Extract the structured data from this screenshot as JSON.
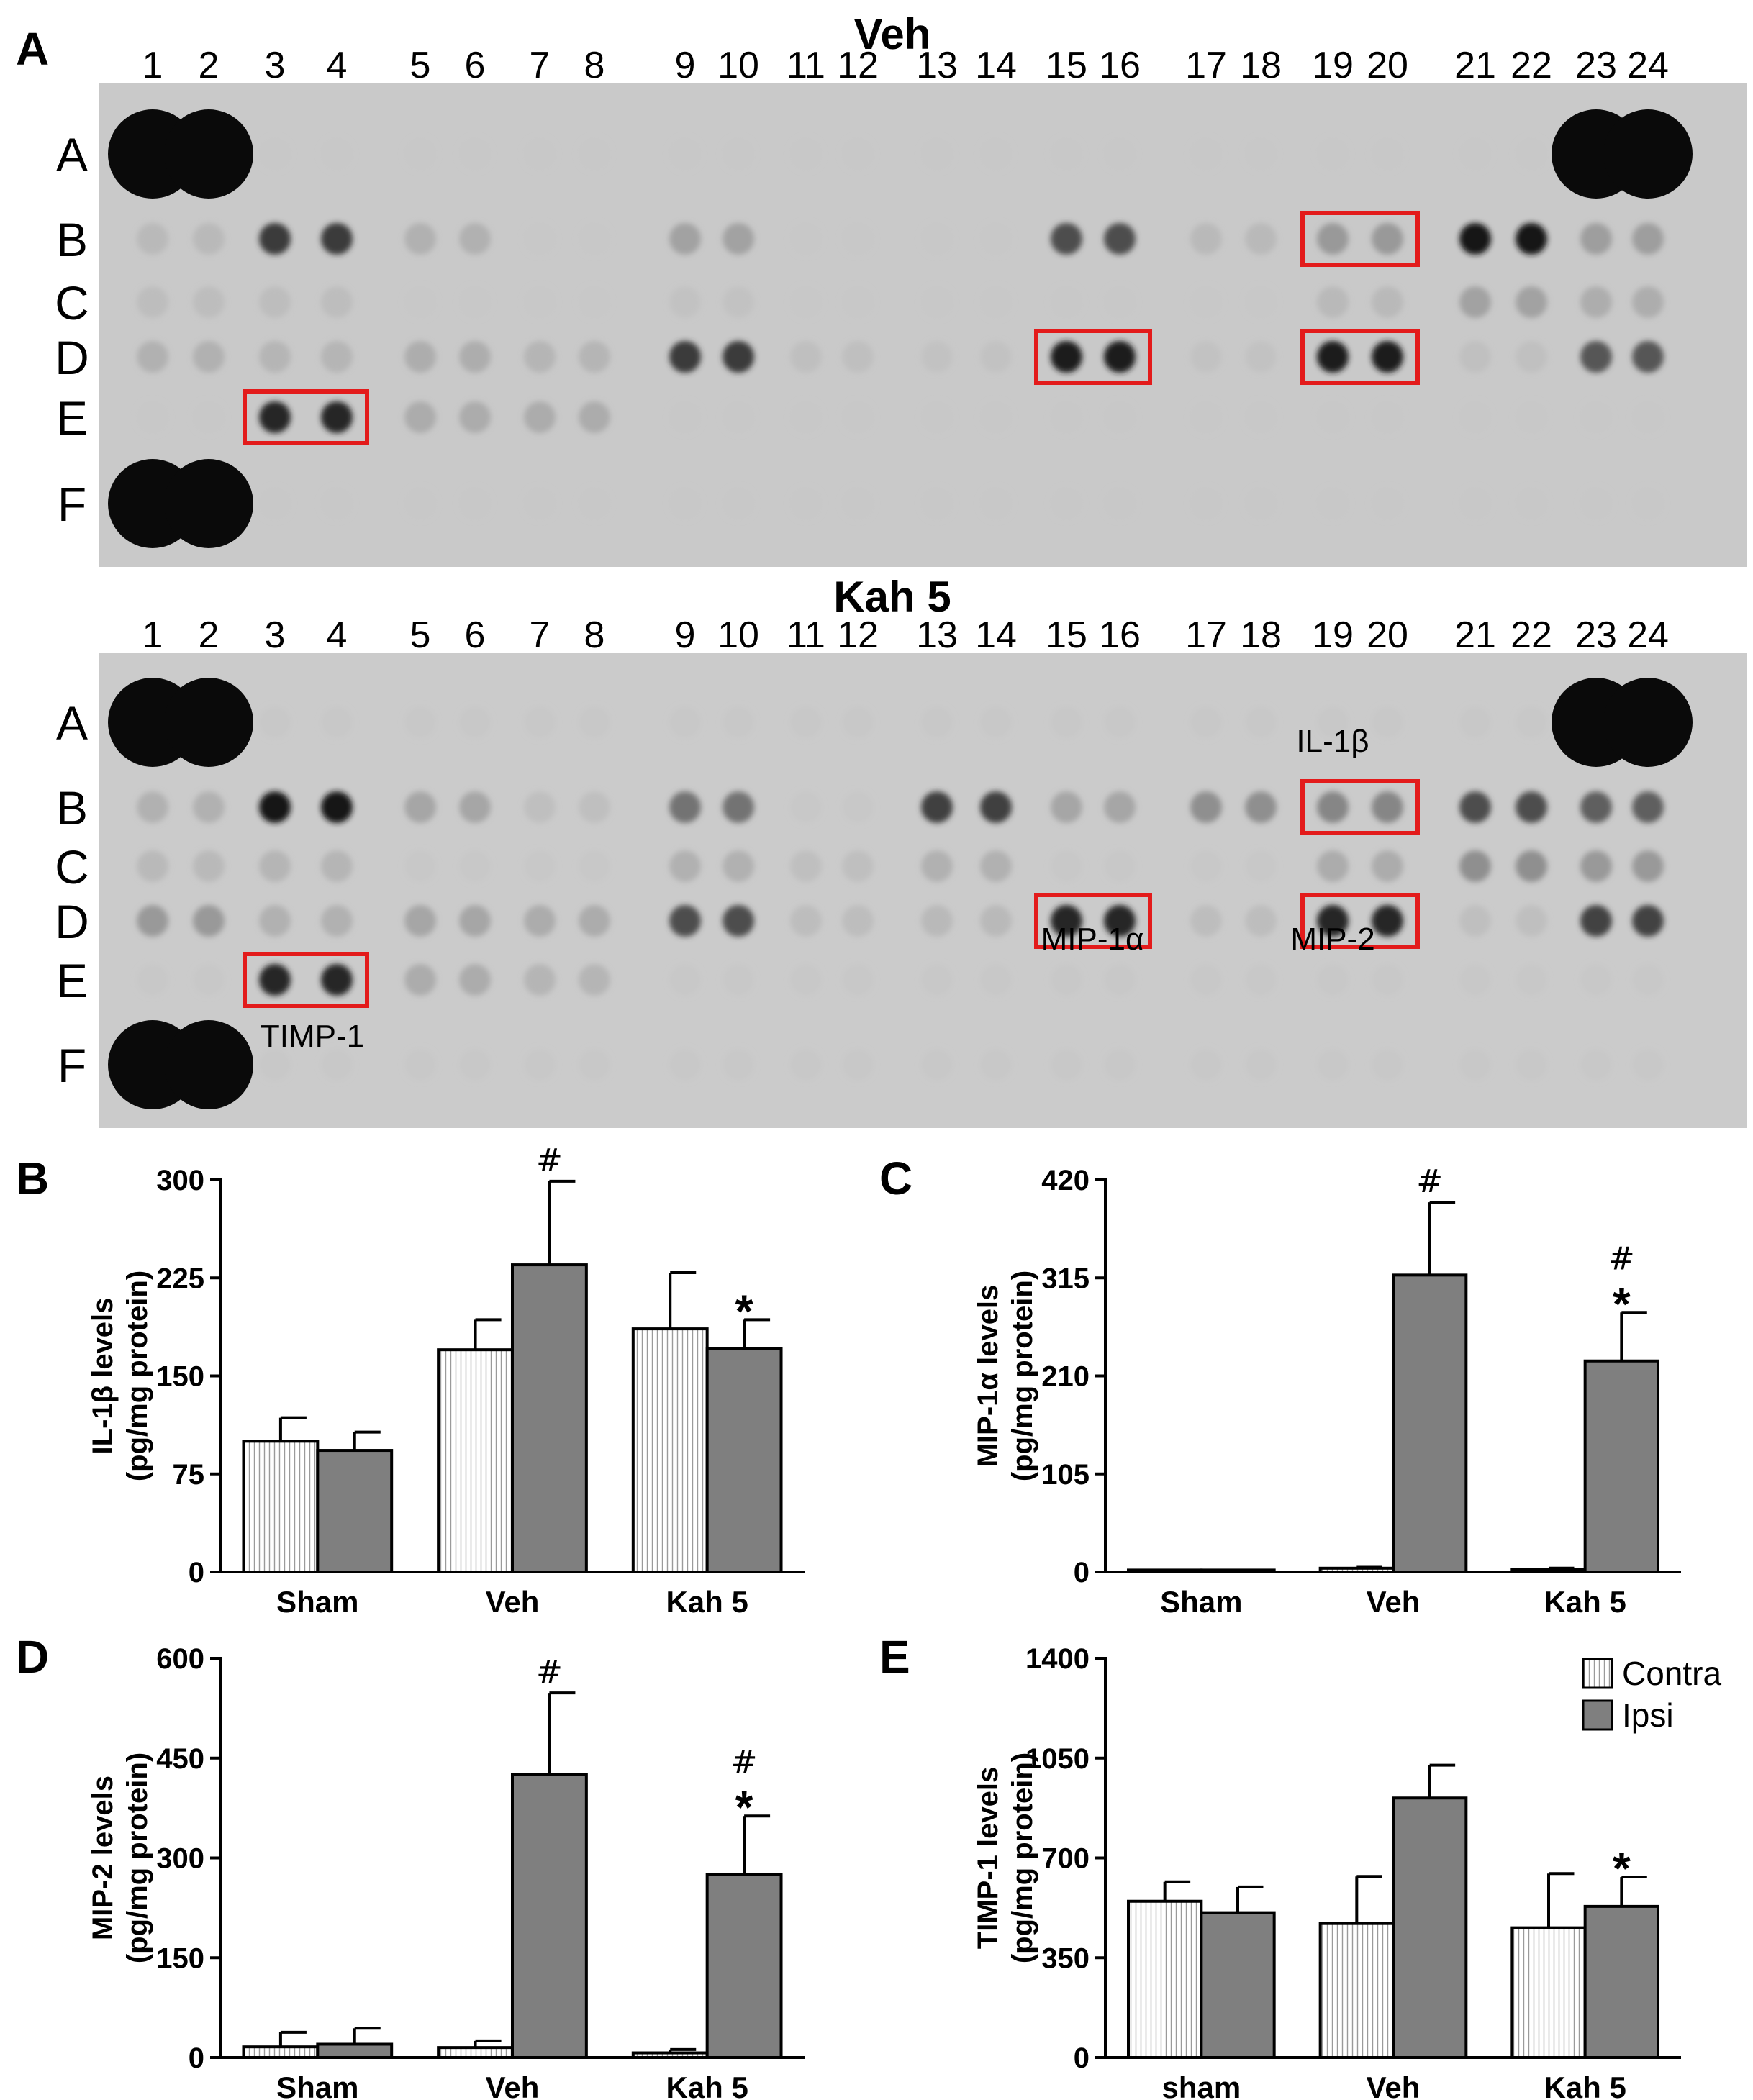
{
  "blot": {
    "panel_label": "A",
    "columns": [
      "1",
      "2",
      "3",
      "4",
      "5",
      "6",
      "7",
      "8",
      "9",
      "10",
      "11",
      "12",
      "13",
      "14",
      "15",
      "16",
      "17",
      "18",
      "19",
      "20",
      "21",
      "22",
      "23",
      "24"
    ],
    "rows": [
      "A",
      "B",
      "C",
      "D",
      "E",
      "F"
    ],
    "membranes": [
      {
        "title": "Veh"
      },
      {
        "title": "Kah 5"
      }
    ],
    "highlight_labels": {
      "il1b": "IL-1β",
      "mip1a": "MIP-1α",
      "mip2": "MIP-2",
      "timp1": "TIMP-1"
    }
  },
  "legend": {
    "contra": "Contra",
    "ipsi": "Ipsi"
  },
  "colors": {
    "ipsi_fill": "#7f7f7f",
    "contra_fill": "#ffffff",
    "highlight_box": "#e31b1b",
    "membrane": "#c8c8c8"
  },
  "chart_data": [
    {
      "panel": "B",
      "type": "bar",
      "ylabel": "IL-1β levels",
      "ylabel2": "(pg/mg protein)",
      "categories": [
        "Sham",
        "Veh",
        "Kah 5"
      ],
      "ylim": [
        0,
        300
      ],
      "yticks": [
        "0",
        "75",
        "150",
        "225",
        "300"
      ],
      "series": [
        {
          "name": "Contra",
          "values": [
            100,
            170,
            186
          ],
          "errors": [
            18,
            23,
            43
          ]
        },
        {
          "name": "Ipsi",
          "values": [
            93,
            235,
            171
          ],
          "errors": [
            14,
            64,
            22
          ]
        }
      ],
      "annotations": [
        {
          "category": 1,
          "series": 1,
          "marks": [
            "#"
          ]
        },
        {
          "category": 2,
          "series": 1,
          "marks": [
            "*"
          ]
        }
      ]
    },
    {
      "panel": "C",
      "type": "bar",
      "ylabel": "MIP-1α levels",
      "ylabel2": "(pg/mg protein)",
      "categories": [
        "Sham",
        "Veh",
        "Kah 5"
      ],
      "ylim": [
        0,
        420
      ],
      "yticks": [
        "0",
        "105",
        "210",
        "315",
        "420"
      ],
      "series": [
        {
          "name": "Contra",
          "values": [
            2,
            4,
            3
          ],
          "errors": [
            0,
            1,
            1
          ]
        },
        {
          "name": "Ipsi",
          "values": [
            2,
            318,
            226
          ],
          "errors": [
            0,
            78,
            52
          ]
        }
      ],
      "annotations": [
        {
          "category": 1,
          "series": 1,
          "marks": [
            "#"
          ]
        },
        {
          "category": 2,
          "series": 1,
          "marks": [
            "#",
            "*"
          ]
        }
      ]
    },
    {
      "panel": "D",
      "type": "bar",
      "ylabel": "MIP-2 levels",
      "ylabel2": "(pg/mg protein)",
      "categories": [
        "Sham",
        "Veh",
        "Kah 5"
      ],
      "ylim": [
        0,
        600
      ],
      "yticks": [
        "0",
        "150",
        "300",
        "450",
        "600"
      ],
      "series": [
        {
          "name": "Contra",
          "values": [
            16,
            15,
            7
          ],
          "errors": [
            22,
            10,
            5
          ]
        },
        {
          "name": "Ipsi",
          "values": [
            20,
            425,
            275
          ],
          "errors": [
            24,
            123,
            88
          ]
        }
      ],
      "annotations": [
        {
          "category": 1,
          "series": 1,
          "marks": [
            "#"
          ]
        },
        {
          "category": 2,
          "series": 1,
          "marks": [
            "#",
            "*"
          ]
        }
      ]
    },
    {
      "panel": "E",
      "type": "bar",
      "ylabel": "TIMP-1 levels",
      "ylabel2": "(pg/mg protein)",
      "categories": [
        "sham",
        "Veh",
        "Kah 5"
      ],
      "ylim": [
        0,
        1400
      ],
      "yticks": [
        "0",
        "350",
        "700",
        "1050",
        "1400"
      ],
      "series": [
        {
          "name": "Contra",
          "values": [
            548,
            470,
            455
          ],
          "errors": [
            68,
            165,
            190
          ]
        },
        {
          "name": "Ipsi",
          "values": [
            508,
            910,
            530
          ],
          "errors": [
            90,
            115,
            103
          ]
        }
      ],
      "annotations": [
        {
          "category": 2,
          "series": 1,
          "marks": [
            "*"
          ]
        }
      ]
    }
  ]
}
